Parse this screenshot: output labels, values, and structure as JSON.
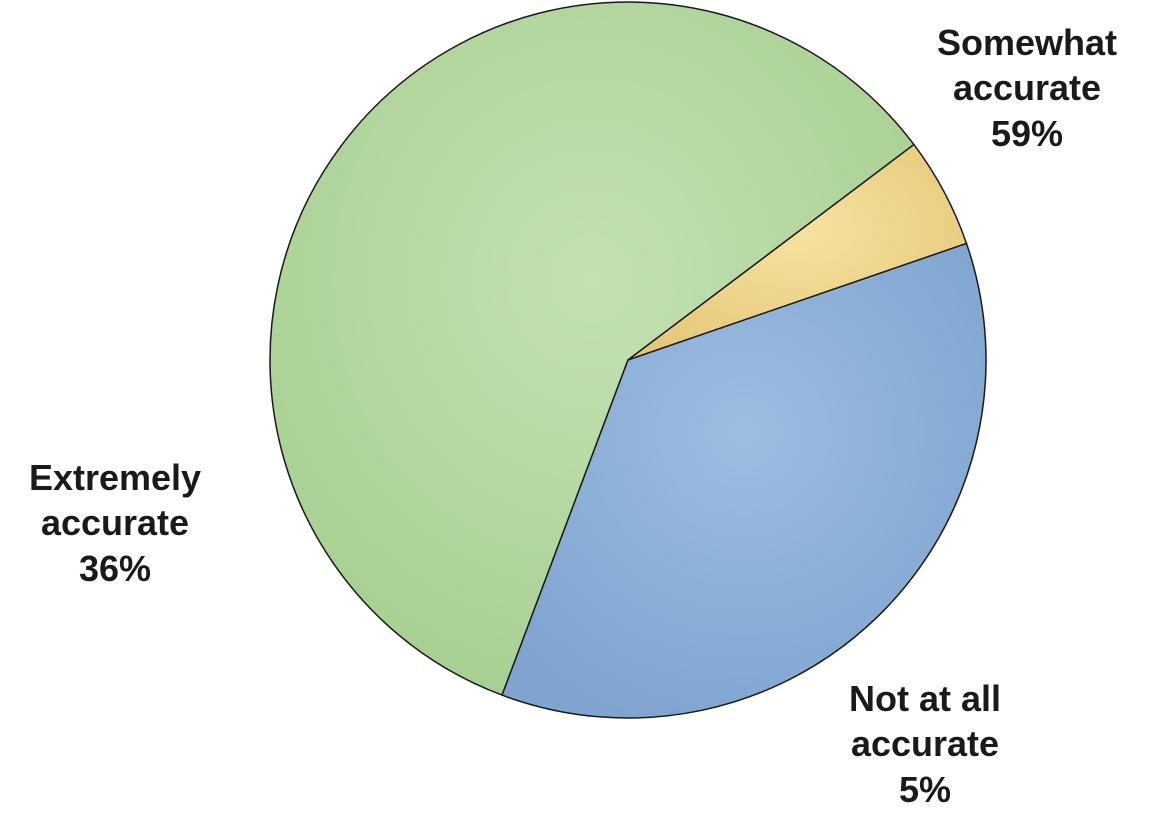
{
  "chart_data": {
    "type": "pie",
    "title": "",
    "slices": [
      {
        "label_lines": [
          "Somewhat",
          "accurate"
        ],
        "value": 59,
        "value_label": "59%",
        "color": "#b7d9a3"
      },
      {
        "label_lines": [
          "Not at all",
          "accurate"
        ],
        "value": 5,
        "value_label": "5%",
        "color": "#efd68a"
      },
      {
        "label_lines": [
          "Extremely",
          "accurate"
        ],
        "value": 36,
        "value_label": "36%",
        "color": "#8fb2d9"
      }
    ],
    "legend": "none",
    "data_labels": "outside, category name and percentage"
  }
}
